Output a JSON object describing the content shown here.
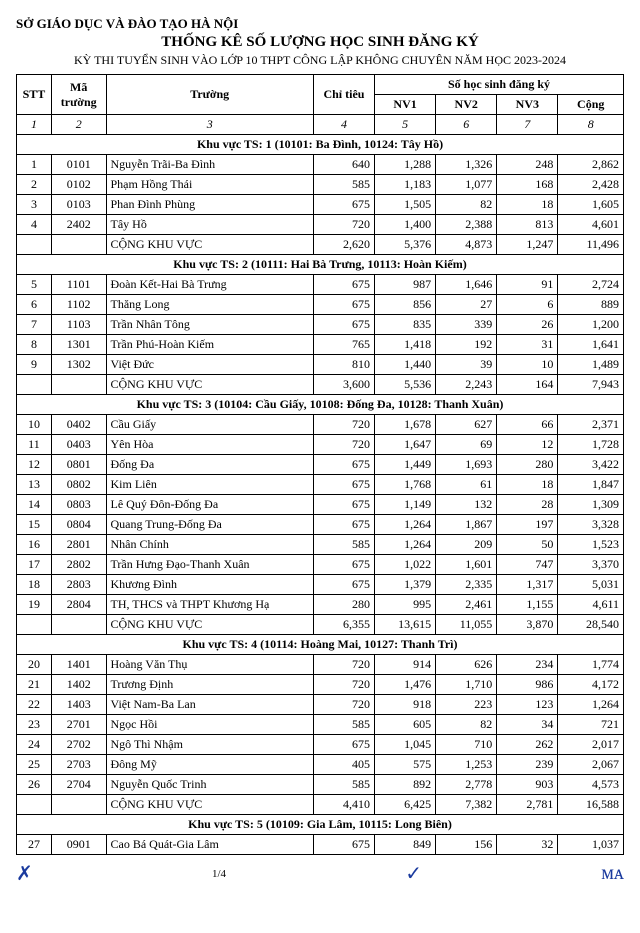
{
  "header": {
    "org": "SỞ GIÁO DỤC VÀ ĐÀO TẠO HÀ NỘI",
    "title": "THỐNG KÊ SỐ LƯỢNG HỌC SINH ĐĂNG KÝ",
    "subtitle": "KỲ THI TUYỂN SINH VÀO LỚP 10 THPT CÔNG LẬP KHÔNG CHUYÊN NĂM HỌC 2023-2024"
  },
  "columns": {
    "stt": "STT",
    "ma": "Mã trường",
    "truong": "Trường",
    "chitieu": "Chỉ tiêu",
    "group": "Số học sinh đăng ký",
    "nv1": "NV1",
    "nv2": "NV2",
    "nv3": "NV3",
    "cong": "Cộng",
    "idx": [
      "1",
      "2",
      "3",
      "4",
      "5",
      "6",
      "7",
      "8"
    ]
  },
  "sections": [
    {
      "title": "Khu vực TS: 1 (10101: Ba Đình, 10124: Tây Hồ)",
      "rows": [
        {
          "stt": "1",
          "ma": "0101",
          "truong": "Nguyễn Trãi-Ba Đình",
          "ct": "640",
          "nv1": "1,288",
          "nv2": "1,326",
          "nv3": "248",
          "cong": "2,862"
        },
        {
          "stt": "2",
          "ma": "0102",
          "truong": "Phạm Hồng Thái",
          "ct": "585",
          "nv1": "1,183",
          "nv2": "1,077",
          "nv3": "168",
          "cong": "2,428"
        },
        {
          "stt": "3",
          "ma": "0103",
          "truong": "Phan Đình Phùng",
          "ct": "675",
          "nv1": "1,505",
          "nv2": "82",
          "nv3": "18",
          "cong": "1,605"
        },
        {
          "stt": "4",
          "ma": "2402",
          "truong": "Tây Hồ",
          "ct": "720",
          "nv1": "1,400",
          "nv2": "2,388",
          "nv3": "813",
          "cong": "4,601"
        }
      ],
      "sum": {
        "label": "CỘNG KHU VỰC",
        "ct": "2,620",
        "nv1": "5,376",
        "nv2": "4,873",
        "nv3": "1,247",
        "cong": "11,496"
      }
    },
    {
      "title": "Khu vực TS: 2 (10111: Hai Bà Trưng, 10113: Hoàn Kiếm)",
      "rows": [
        {
          "stt": "5",
          "ma": "1101",
          "truong": "Đoàn Kết-Hai Bà Trưng",
          "ct": "675",
          "nv1": "987",
          "nv2": "1,646",
          "nv3": "91",
          "cong": "2,724"
        },
        {
          "stt": "6",
          "ma": "1102",
          "truong": "Thăng Long",
          "ct": "675",
          "nv1": "856",
          "nv2": "27",
          "nv3": "6",
          "cong": "889"
        },
        {
          "stt": "7",
          "ma": "1103",
          "truong": "Trần Nhân Tông",
          "ct": "675",
          "nv1": "835",
          "nv2": "339",
          "nv3": "26",
          "cong": "1,200"
        },
        {
          "stt": "8",
          "ma": "1301",
          "truong": "Trần Phú-Hoàn Kiếm",
          "ct": "765",
          "nv1": "1,418",
          "nv2": "192",
          "nv3": "31",
          "cong": "1,641"
        },
        {
          "stt": "9",
          "ma": "1302",
          "truong": "Việt Đức",
          "ct": "810",
          "nv1": "1,440",
          "nv2": "39",
          "nv3": "10",
          "cong": "1,489"
        }
      ],
      "sum": {
        "label": "CỘNG KHU VỰC",
        "ct": "3,600",
        "nv1": "5,536",
        "nv2": "2,243",
        "nv3": "164",
        "cong": "7,943"
      }
    },
    {
      "title": "Khu vực TS: 3 (10104: Cầu Giấy, 10108: Đống Đa, 10128: Thanh Xuân)",
      "rows": [
        {
          "stt": "10",
          "ma": "0402",
          "truong": "Cầu Giấy",
          "ct": "720",
          "nv1": "1,678",
          "nv2": "627",
          "nv3": "66",
          "cong": "2,371"
        },
        {
          "stt": "11",
          "ma": "0403",
          "truong": "Yên Hòa",
          "ct": "720",
          "nv1": "1,647",
          "nv2": "69",
          "nv3": "12",
          "cong": "1,728"
        },
        {
          "stt": "12",
          "ma": "0801",
          "truong": "Đống Đa",
          "ct": "675",
          "nv1": "1,449",
          "nv2": "1,693",
          "nv3": "280",
          "cong": "3,422"
        },
        {
          "stt": "13",
          "ma": "0802",
          "truong": "Kim Liên",
          "ct": "675",
          "nv1": "1,768",
          "nv2": "61",
          "nv3": "18",
          "cong": "1,847"
        },
        {
          "stt": "14",
          "ma": "0803",
          "truong": "Lê Quý Đôn-Đống Đa",
          "ct": "675",
          "nv1": "1,149",
          "nv2": "132",
          "nv3": "28",
          "cong": "1,309"
        },
        {
          "stt": "15",
          "ma": "0804",
          "truong": "Quang Trung-Đống Đa",
          "ct": "675",
          "nv1": "1,264",
          "nv2": "1,867",
          "nv3": "197",
          "cong": "3,328"
        },
        {
          "stt": "16",
          "ma": "2801",
          "truong": "Nhân Chính",
          "ct": "585",
          "nv1": "1,264",
          "nv2": "209",
          "nv3": "50",
          "cong": "1,523"
        },
        {
          "stt": "17",
          "ma": "2802",
          "truong": "Trần Hưng Đạo-Thanh Xuân",
          "ct": "675",
          "nv1": "1,022",
          "nv2": "1,601",
          "nv3": "747",
          "cong": "3,370"
        },
        {
          "stt": "18",
          "ma": "2803",
          "truong": "Khương Đình",
          "ct": "675",
          "nv1": "1,379",
          "nv2": "2,335",
          "nv3": "1,317",
          "cong": "5,031"
        },
        {
          "stt": "19",
          "ma": "2804",
          "truong": "TH, THCS và THPT Khương Hạ",
          "ct": "280",
          "nv1": "995",
          "nv2": "2,461",
          "nv3": "1,155",
          "cong": "4,611"
        }
      ],
      "sum": {
        "label": "CỘNG KHU VỰC",
        "ct": "6,355",
        "nv1": "13,615",
        "nv2": "11,055",
        "nv3": "3,870",
        "cong": "28,540"
      }
    },
    {
      "title": "Khu vực TS: 4 (10114: Hoàng Mai, 10127: Thanh Trì)",
      "rows": [
        {
          "stt": "20",
          "ma": "1401",
          "truong": "Hoàng Văn Thụ",
          "ct": "720",
          "nv1": "914",
          "nv2": "626",
          "nv3": "234",
          "cong": "1,774"
        },
        {
          "stt": "21",
          "ma": "1402",
          "truong": "Trương Định",
          "ct": "720",
          "nv1": "1,476",
          "nv2": "1,710",
          "nv3": "986",
          "cong": "4,172"
        },
        {
          "stt": "22",
          "ma": "1403",
          "truong": "Việt Nam-Ba Lan",
          "ct": "720",
          "nv1": "918",
          "nv2": "223",
          "nv3": "123",
          "cong": "1,264"
        },
        {
          "stt": "23",
          "ma": "2701",
          "truong": "Ngọc Hồi",
          "ct": "585",
          "nv1": "605",
          "nv2": "82",
          "nv3": "34",
          "cong": "721"
        },
        {
          "stt": "24",
          "ma": "2702",
          "truong": "Ngô Thì Nhậm",
          "ct": "675",
          "nv1": "1,045",
          "nv2": "710",
          "nv3": "262",
          "cong": "2,017"
        },
        {
          "stt": "25",
          "ma": "2703",
          "truong": "Đông Mỹ",
          "ct": "405",
          "nv1": "575",
          "nv2": "1,253",
          "nv3": "239",
          "cong": "2,067"
        },
        {
          "stt": "26",
          "ma": "2704",
          "truong": "Nguyễn Quốc Trinh",
          "ct": "585",
          "nv1": "892",
          "nv2": "2,778",
          "nv3": "903",
          "cong": "4,573"
        }
      ],
      "sum": {
        "label": "CỘNG KHU VỰC",
        "ct": "4,410",
        "nv1": "6,425",
        "nv2": "7,382",
        "nv3": "2,781",
        "cong": "16,588"
      }
    },
    {
      "title": "Khu vực TS: 5 (10109: Gia Lâm, 10115: Long Biên)",
      "rows": [
        {
          "stt": "27",
          "ma": "0901",
          "truong": "Cao Bá Quát-Gia Lâm",
          "ct": "675",
          "nv1": "849",
          "nv2": "156",
          "nv3": "32",
          "cong": "1,037"
        }
      ]
    }
  ],
  "footer": {
    "page": "1/4",
    "sigs": [
      "✗",
      "",
      "✓",
      "ᴍᴀ"
    ]
  }
}
